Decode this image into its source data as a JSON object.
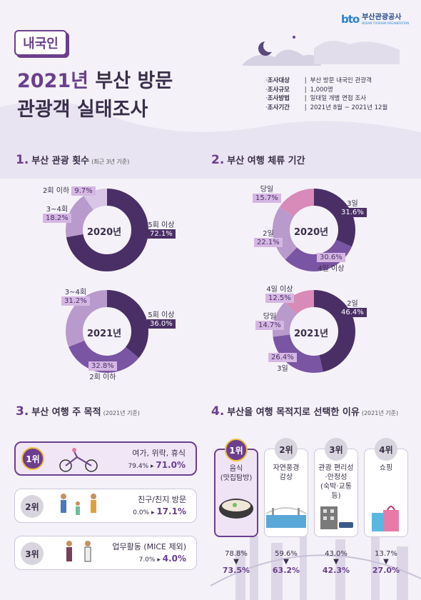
{
  "org": {
    "logo_mark": "bto",
    "name": "부산관광공사",
    "sub": "BUSAN TOURISM ORGANIZATION"
  },
  "badge": "내국인",
  "title": {
    "year": "2021년",
    "line1_rest": " 부산 방문",
    "line2": "관광객 실태조사"
  },
  "survey": [
    {
      "key": "조사대상",
      "value": "부산 방문 내국인 관광객"
    },
    {
      "key": "조사규모",
      "value": "1,000명"
    },
    {
      "key": "조사방법",
      "value": "일대일 개별 면접 조사"
    },
    {
      "key": "조사기간",
      "value": "2021년 8월 ~ 2021년 12월"
    }
  ],
  "sections": {
    "s1": {
      "num": "1.",
      "title": "부산 관광 횟수",
      "note": "(최근 3년 기준)"
    },
    "s2": {
      "num": "2.",
      "title": "부산 여행 체류 기간",
      "note": ""
    },
    "s3": {
      "num": "3.",
      "title": "부산 여행 주 목적",
      "note": "(2021년 기준)"
    },
    "s4": {
      "num": "4.",
      "title": "부산을 여행 목적지로 선택한 이유",
      "note": "(2021년 기준)"
    }
  },
  "visits_2020": {
    "year": "2020년",
    "segments": [
      {
        "label": "5회 이상",
        "value": "72.1%",
        "pct": 72.1,
        "color": "#4a2f66"
      },
      {
        "label": "3~4회",
        "value": "18.2%",
        "pct": 18.2,
        "color": "#b89acc"
      },
      {
        "label": "2회 이하",
        "value": "9.7%",
        "pct": 9.7,
        "color": "#d9c6e6"
      }
    ]
  },
  "visits_2021": {
    "year": "2021년",
    "segments": [
      {
        "label": "5회 이상",
        "value": "36.0%",
        "pct": 36.0,
        "color": "#4a2f66"
      },
      {
        "label": "2회 이하",
        "value": "32.8%",
        "pct": 32.8,
        "color": "#7a55a3"
      },
      {
        "label": "3~4회",
        "value": "31.2%",
        "pct": 31.2,
        "color": "#b89acc"
      }
    ]
  },
  "stay_2020": {
    "year": "2020년",
    "segments": [
      {
        "label": "3일",
        "value": "31.6%",
        "pct": 31.6,
        "color": "#4a2f66"
      },
      {
        "label": "4일 이상",
        "value": "30.6%",
        "pct": 30.6,
        "color": "#7a55a3"
      },
      {
        "label": "2일",
        "value": "22.1%",
        "pct": 22.1,
        "color": "#b89acc"
      },
      {
        "label": "당일",
        "value": "15.7%",
        "pct": 15.7,
        "color": "#d88ab8"
      }
    ]
  },
  "stay_2021": {
    "year": "2021년",
    "segments": [
      {
        "label": "2일",
        "value": "46.4%",
        "pct": 46.4,
        "color": "#4a2f66"
      },
      {
        "label": "3일",
        "value": "26.4%",
        "pct": 26.4,
        "color": "#7a55a3"
      },
      {
        "label": "당일",
        "value": "14.7%",
        "pct": 14.7,
        "color": "#b89acc"
      },
      {
        "label": "4일 이상",
        "value": "12.5%",
        "pct": 12.5,
        "color": "#d88ab8"
      }
    ]
  },
  "purposes": [
    {
      "rank": "1위",
      "title": "여가, 위락, 휴식",
      "prev": "79.4%",
      "cur": "71.0%"
    },
    {
      "rank": "2위",
      "title": "친구/친지 방문",
      "prev": "0.0%",
      "cur": "17.1%"
    },
    {
      "rank": "3위",
      "title": "업무활동 (MICE 제외)",
      "prev": "7.0%",
      "cur": "4.0%"
    }
  ],
  "reasons": [
    {
      "rank": "1위",
      "title": "음식\n(맛집탐방)",
      "prev": "78.8%",
      "cur": "73.5%"
    },
    {
      "rank": "2위",
      "title": "자연풍경\n감상",
      "prev": "59.6%",
      "cur": "63.2%"
    },
    {
      "rank": "3위",
      "title": "관광 편리성\n·안정성\n(숙박·교통 등)",
      "prev": "43.0%",
      "cur": "42.3%"
    },
    {
      "rank": "4위",
      "title": "쇼핑",
      "prev": "13.7%",
      "cur": "27.0%"
    }
  ],
  "colors": {
    "accent": "#6b3f8e",
    "dark": "#4a2f66",
    "light": "#d9c6e6"
  }
}
